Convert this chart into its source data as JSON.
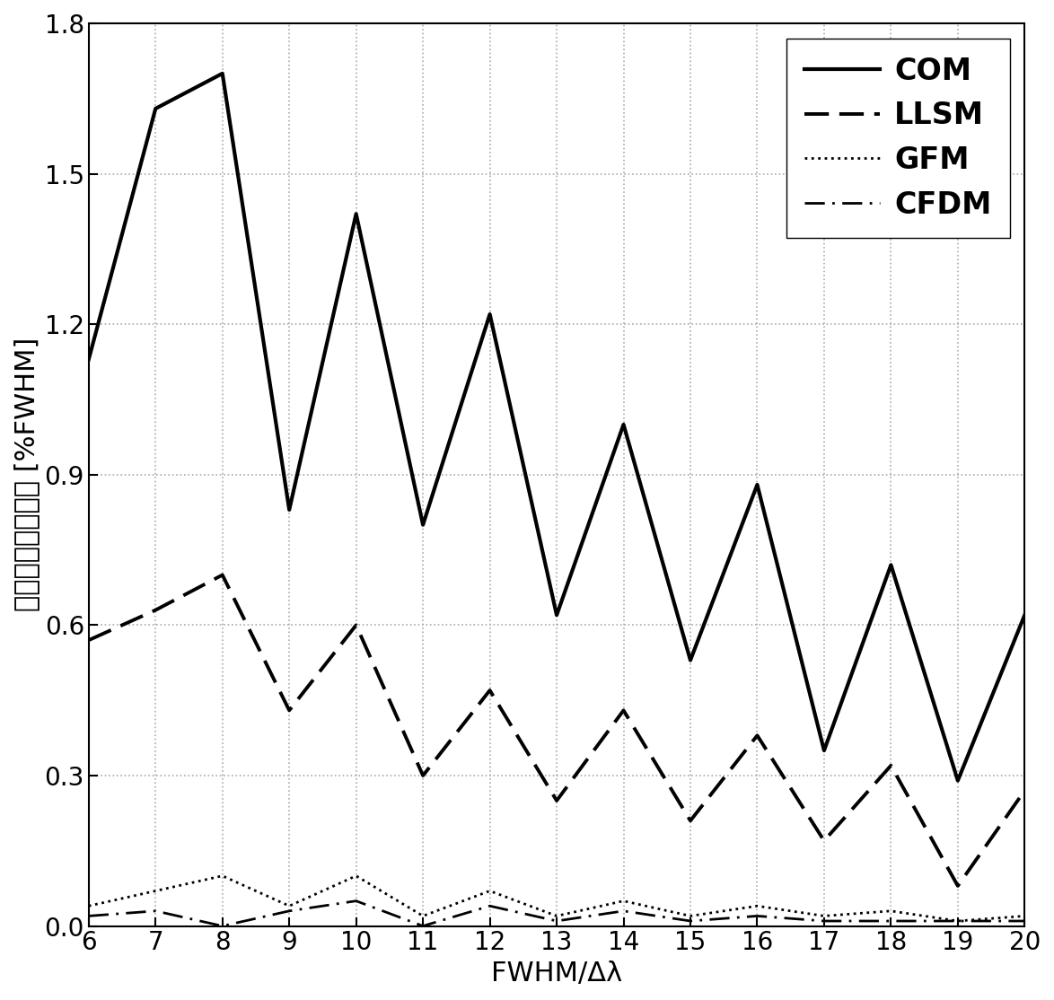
{
  "x": [
    6,
    7,
    8,
    9,
    10,
    11,
    12,
    13,
    14,
    15,
    16,
    17,
    18,
    19,
    20
  ],
  "COM": [
    1.13,
    1.63,
    1.7,
    0.83,
    1.42,
    0.8,
    1.22,
    0.62,
    1.0,
    0.53,
    0.88,
    0.35,
    0.72,
    0.29,
    0.62
  ],
  "LLSM": [
    0.57,
    0.63,
    0.7,
    0.43,
    0.6,
    0.3,
    0.47,
    0.25,
    0.43,
    0.21,
    0.38,
    0.17,
    0.32,
    0.08,
    0.27
  ],
  "GFM": [
    0.04,
    0.07,
    0.1,
    0.04,
    0.1,
    0.02,
    0.07,
    0.02,
    0.05,
    0.02,
    0.04,
    0.02,
    0.03,
    0.01,
    0.02
  ],
  "CFDM": [
    0.02,
    0.03,
    0.0,
    0.03,
    0.05,
    0.0,
    0.04,
    0.01,
    0.03,
    0.01,
    0.02,
    0.01,
    0.01,
    0.01,
    0.01
  ],
  "xlim": [
    6,
    20
  ],
  "ylim": [
    0,
    1.8
  ],
  "xlabel": "FWHM/Δλ",
  "ylabel": "峰値提取系统误差 [%FWHM]",
  "yticks": [
    0,
    0.3,
    0.6,
    0.9,
    1.2,
    1.5,
    1.8
  ],
  "xticks": [
    6,
    7,
    8,
    9,
    10,
    11,
    12,
    13,
    14,
    15,
    16,
    17,
    18,
    19,
    20
  ],
  "grid_color": "#aaaaaa",
  "line_color": "#000000",
  "background_color": "#ffffff",
  "legend_labels": [
    "COM",
    "LLSM",
    "GFM",
    "CFDM"
  ],
  "com_lw": 3.0,
  "llsm_lw": 2.8,
  "gfm_lw": 2.0,
  "cfdm_lw": 2.0,
  "fontsize_label": 22,
  "fontsize_tick": 20,
  "fontsize_legend": 24
}
